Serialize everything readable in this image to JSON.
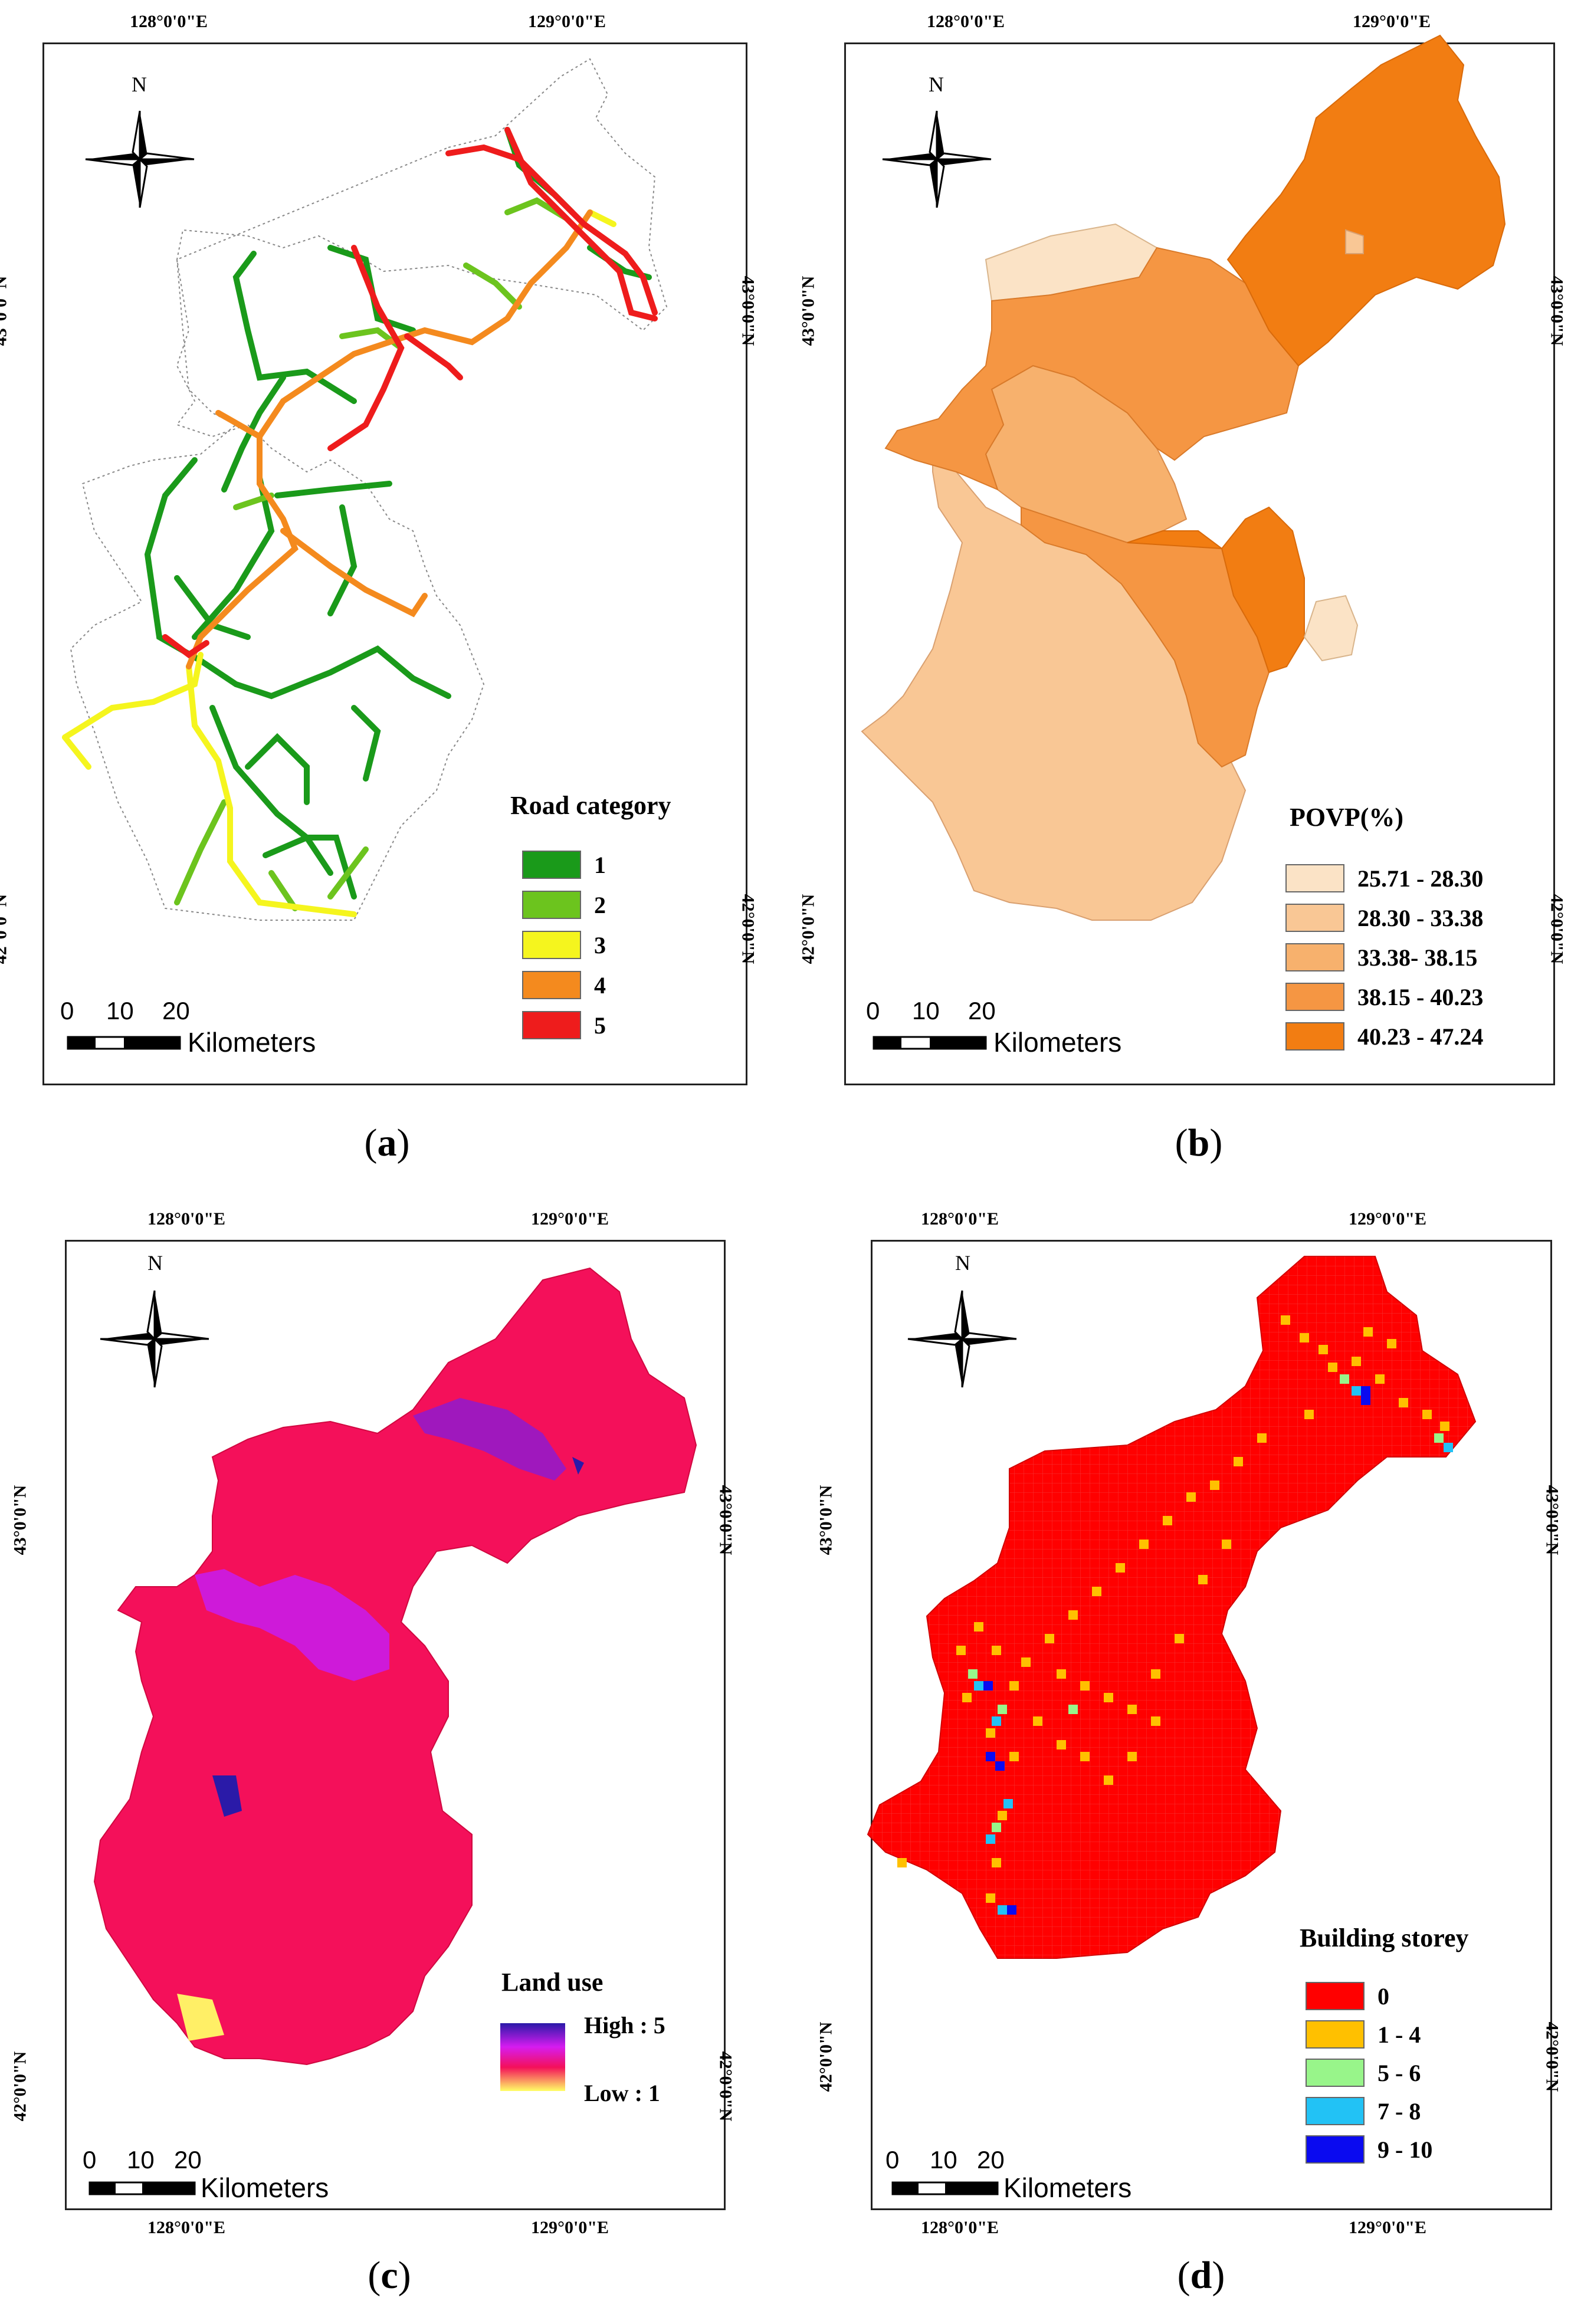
{
  "axes": {
    "lon_left": "128°0'0\"E",
    "lon_right": "129°0'0\"E",
    "lat_top": "43°0'0\"N",
    "lat_bottom": "42°0'0\"N"
  },
  "north_label": "N",
  "scale_bar": {
    "ticks": [
      "0",
      "10",
      "20"
    ],
    "unit": "Kilometers"
  },
  "panels": {
    "a": {
      "caption_letter": "a",
      "legend_title": "Road category",
      "legend": [
        {
          "label": "1",
          "color": "#1a9a1a"
        },
        {
          "label": "2",
          "color": "#6cc41e"
        },
        {
          "label": "3",
          "color": "#f5f51e"
        },
        {
          "label": "4",
          "color": "#f48a1e"
        },
        {
          "label": "5",
          "color": "#ee1c1c"
        }
      ]
    },
    "b": {
      "caption_letter": "b",
      "legend_title": "POVP(%)",
      "legend": [
        {
          "label": "25.71 - 28.30",
          "color": "#fbe3c6"
        },
        {
          "label": "28.30 - 33.38",
          "color": "#f9c795"
        },
        {
          "label": "33.38- 38.15",
          "color": "#f7b16d"
        },
        {
          "label": "38.15 - 40.23",
          "color": "#f59643"
        },
        {
          "label": "40.23 - 47.24",
          "color": "#f27d12"
        }
      ]
    },
    "c": {
      "caption_letter": "c",
      "legend_title": "Land use",
      "gradient_high": "High : 5",
      "gradient_low": "Low : 1",
      "gradient_colors": [
        "#2a1aa8",
        "#d61cf0",
        "#f4105a",
        "#ffff66"
      ],
      "base_color": "#f4105a"
    },
    "d": {
      "caption_letter": "d",
      "legend_title": "Building storey",
      "legend": [
        {
          "label": "0",
          "color": "#ff0000"
        },
        {
          "label": "1 - 4",
          "color": "#ffc000"
        },
        {
          "label": "5 - 6",
          "color": "#98f58a"
        },
        {
          "label": "7 - 8",
          "color": "#22c2f5"
        },
        {
          "label": "9 - 10",
          "color": "#0a0af0"
        }
      ]
    }
  }
}
